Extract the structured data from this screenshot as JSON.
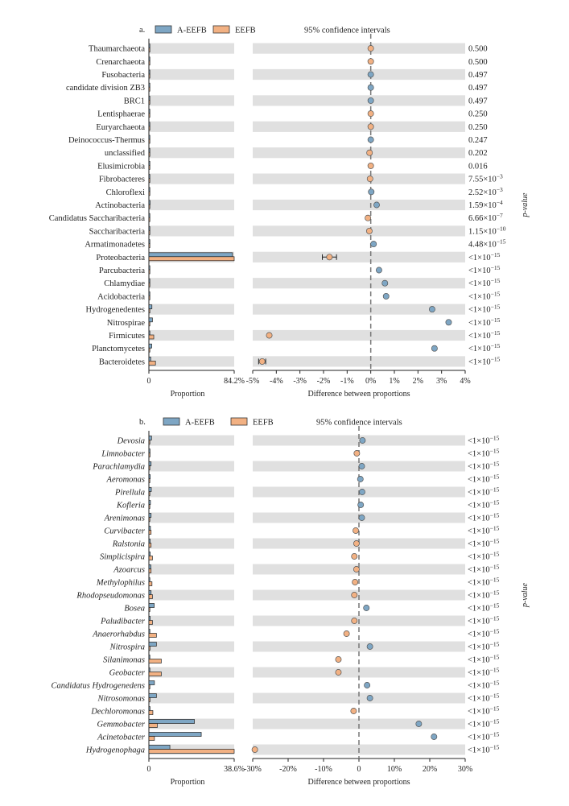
{
  "colors": {
    "a_eefb": "#7ea6c4",
    "eefb": "#f2b183",
    "band": "#e0e0e0",
    "dash": "#777777"
  },
  "legend": {
    "series1": "A-EEFB",
    "series2": "EEFB",
    "ci_title": "95% confidence intervals",
    "pvalue_label": "p-value"
  },
  "chart_data": [
    {
      "type": "bar",
      "panel_label": "a.",
      "title": "95% confidence intervals",
      "xlabel_left": "Proportion",
      "xlabel_right": "Difference between proportions",
      "left_ticks": [
        "0",
        "84.2%"
      ],
      "left_max": 84.2,
      "right_ticks": [
        "-5%",
        "-4%",
        "-3%",
        "-2%",
        "-1%",
        "0%",
        "1%",
        "2%",
        "3%",
        "4%"
      ],
      "right_range": [
        -5,
        4
      ],
      "italic": false,
      "categories": [
        "Thaumarchaeota",
        "Crenarchaeota",
        "Fusobacteria",
        "candidate division ZB3",
        "BRC1",
        "Lentisphaerae",
        "Euryarchaeota",
        "Deinococcus-Thermus",
        "unclassified",
        "Elusimicrobia",
        "Fibrobacteres",
        "Chloroflexi",
        "Actinobacteria",
        "Candidatus Saccharibacteria",
        "Saccharibacteria",
        "Armatimonadetes",
        "Proteobacteria",
        "Parcubacteria",
        "Chlamydiae",
        "Acidobacteria",
        "Hydrogenedentes",
        "Nitrospirae",
        "Firmicutes",
        "Planctomycetes",
        "Bacteroidetes"
      ],
      "series": [
        {
          "name": "A-EEFB",
          "values": [
            0.02,
            0.02,
            0.02,
            0.02,
            0.02,
            0.02,
            0.02,
            0.05,
            0.3,
            0.02,
            0.02,
            0.1,
            1.2,
            0.05,
            0.05,
            0.1,
            82.5,
            0.3,
            0.8,
            0.8,
            3.0,
            3.5,
            0.6,
            2.8,
            1.8
          ]
        },
        {
          "name": "EEFB",
          "values": [
            0.02,
            0.02,
            0.02,
            0.02,
            0.02,
            0.02,
            0.02,
            0.05,
            0.3,
            0.02,
            0.02,
            0.1,
            0.9,
            0.2,
            0.2,
            0.05,
            84.2,
            0.1,
            0.2,
            0.2,
            0.4,
            0.3,
            4.8,
            0.2,
            6.5
          ]
        }
      ],
      "differences": [
        0.0,
        0.0,
        0.0,
        0.0,
        0.0,
        0.0,
        0.0,
        0.0,
        -0.05,
        0.0,
        -0.03,
        0.02,
        0.25,
        -0.12,
        -0.06,
        0.12,
        -1.75,
        0.35,
        0.6,
        0.65,
        2.6,
        3.3,
        -4.3,
        2.7,
        -4.6
      ],
      "ci": [
        null,
        null,
        null,
        null,
        null,
        null,
        null,
        null,
        null,
        null,
        null,
        null,
        null,
        null,
        null,
        null,
        [
          -2.05,
          -1.45
        ],
        null,
        null,
        null,
        [
          2.55,
          2.65
        ],
        [
          3.25,
          3.35
        ],
        [
          -4.35,
          -4.25
        ],
        [
          2.65,
          2.75
        ],
        [
          -4.75,
          -4.45
        ]
      ],
      "diff_color": [
        "eefb",
        "eefb",
        "a_eefb",
        "a_eefb",
        "a_eefb",
        "eefb",
        "eefb",
        "a_eefb",
        "eefb",
        "eefb",
        "eefb",
        "a_eefb",
        "a_eefb",
        "eefb",
        "eefb",
        "a_eefb",
        "eefb",
        "a_eefb",
        "a_eefb",
        "a_eefb",
        "a_eefb",
        "a_eefb",
        "eefb",
        "a_eefb",
        "eefb"
      ],
      "p_values": [
        {
          "base": "0.500"
        },
        {
          "base": "0.500"
        },
        {
          "base": "0.497"
        },
        {
          "base": "0.497"
        },
        {
          "base": "0.497"
        },
        {
          "base": "0.250"
        },
        {
          "base": "0.250"
        },
        {
          "base": "0.247"
        },
        {
          "base": "0.202"
        },
        {
          "base": "0.016"
        },
        {
          "base": "7.55×10",
          "exp": "−3"
        },
        {
          "base": "2.52×10",
          "exp": "−3"
        },
        {
          "base": "1.59×10",
          "exp": "−4"
        },
        {
          "base": "6.66×10",
          "exp": "−7"
        },
        {
          "base": "1.15×10",
          "exp": "−10"
        },
        {
          "base": "4.48×10",
          "exp": "−15"
        },
        {
          "base": "<1×10",
          "exp": "−15"
        },
        {
          "base": "<1×10",
          "exp": "−15"
        },
        {
          "base": "<1×10",
          "exp": "−15"
        },
        {
          "base": "<1×10",
          "exp": "−15"
        },
        {
          "base": "<1×10",
          "exp": "−15"
        },
        {
          "base": "<1×10",
          "exp": "−15"
        },
        {
          "base": "<1×10",
          "exp": "−15"
        },
        {
          "base": "<1×10",
          "exp": "−15"
        },
        {
          "base": "<1×10",
          "exp": "−15"
        }
      ]
    },
    {
      "type": "bar",
      "panel_label": "b.",
      "title": "95% confidence intervals",
      "xlabel_left": "Proportion",
      "xlabel_right": "Difference between proportions",
      "left_ticks": [
        "0",
        "38.6%"
      ],
      "left_max": 38.6,
      "right_ticks": [
        "-30%",
        "-20%",
        "-10%",
        "0",
        "10%",
        "20%",
        "30%"
      ],
      "right_range": [
        -30,
        30
      ],
      "italic": true,
      "categories": [
        "Devosia",
        "Limnobacter",
        "Parachlamydia",
        "Aeromonas",
        "Pirellula",
        "Kofleria",
        "Arenimonas",
        "Curvibacter",
        "Ralstonia",
        "Simplicispira",
        "Azoarcus",
        "Methylophilus",
        "Rhodopseudomonas",
        "Bosea",
        "Paludibacter",
        "Anaerorhabdus",
        "Nitrospira",
        "Silanimonas",
        "Geobacter",
        "Candidatus Hydrogenedens",
        "Nitrosomonas",
        "Dechloromonas",
        "Gemmobacter",
        "Acinetobacter",
        "Hydrogenophaga"
      ],
      "series": [
        {
          "name": "A-EEFB",
          "values": [
            1.2,
            0.5,
            1.0,
            0.6,
            1.1,
            0.7,
            1.0,
            0.7,
            0.6,
            0.6,
            0.9,
            0.4,
            1.0,
            2.4,
            0.6,
            0.3,
            3.4,
            0.3,
            0.4,
            2.5,
            3.4,
            0.5,
            20.6,
            23.7,
            9.5
          ]
        },
        {
          "name": "EEFB",
          "values": [
            0.3,
            0.5,
            0.3,
            0.2,
            0.2,
            0.3,
            0.2,
            1.0,
            1.0,
            1.6,
            1.0,
            1.4,
            1.6,
            0.3,
            1.6,
            3.4,
            0.5,
            5.6,
            5.6,
            0.3,
            0.5,
            1.8,
            3.8,
            2.5,
            38.6
          ]
        }
      ],
      "differences": [
        1.0,
        -0.6,
        0.8,
        0.4,
        0.9,
        0.5,
        0.8,
        -0.9,
        -0.7,
        -1.3,
        -0.7,
        -1.1,
        -1.3,
        2.1,
        -1.3,
        -3.5,
        3.1,
        -5.8,
        -5.8,
        2.3,
        3.1,
        -1.5,
        16.9,
        21.2,
        -29.4
      ],
      "ci": null,
      "diff_color": [
        "a_eefb",
        "eefb",
        "a_eefb",
        "a_eefb",
        "a_eefb",
        "a_eefb",
        "a_eefb",
        "eefb",
        "eefb",
        "eefb",
        "eefb",
        "eefb",
        "eefb",
        "a_eefb",
        "eefb",
        "eefb",
        "a_eefb",
        "eefb",
        "eefb",
        "a_eefb",
        "a_eefb",
        "eefb",
        "a_eefb",
        "a_eefb",
        "eefb"
      ],
      "p_values": [
        {
          "base": "<1×10",
          "exp": "−15"
        },
        {
          "base": "<1×10",
          "exp": "−15"
        },
        {
          "base": "<1×10",
          "exp": "−15"
        },
        {
          "base": "<1×10",
          "exp": "−15"
        },
        {
          "base": "<1×10",
          "exp": "−15"
        },
        {
          "base": "<1×10",
          "exp": "−15"
        },
        {
          "base": "<1×10",
          "exp": "−15"
        },
        {
          "base": "<1×10",
          "exp": "−15"
        },
        {
          "base": "<1×10",
          "exp": "−15"
        },
        {
          "base": "<1×10",
          "exp": "−15"
        },
        {
          "base": "<1×10",
          "exp": "−15"
        },
        {
          "base": "<1×10",
          "exp": "−15"
        },
        {
          "base": "<1×10",
          "exp": "−15"
        },
        {
          "base": "<1×10",
          "exp": "−15"
        },
        {
          "base": "<1×10",
          "exp": "−15"
        },
        {
          "base": "<1×10",
          "exp": "−15"
        },
        {
          "base": "<1×10",
          "exp": "−15"
        },
        {
          "base": "<1×10",
          "exp": "−15"
        },
        {
          "base": "<1×10",
          "exp": "−15"
        },
        {
          "base": "<1×10",
          "exp": "−15"
        },
        {
          "base": "<1×10",
          "exp": "−15"
        },
        {
          "base": "<1×10",
          "exp": "−15"
        },
        {
          "base": "<1×10",
          "exp": "−15"
        },
        {
          "base": "<1×10",
          "exp": "−15"
        },
        {
          "base": "<1×10",
          "exp": "−15"
        }
      ]
    }
  ]
}
